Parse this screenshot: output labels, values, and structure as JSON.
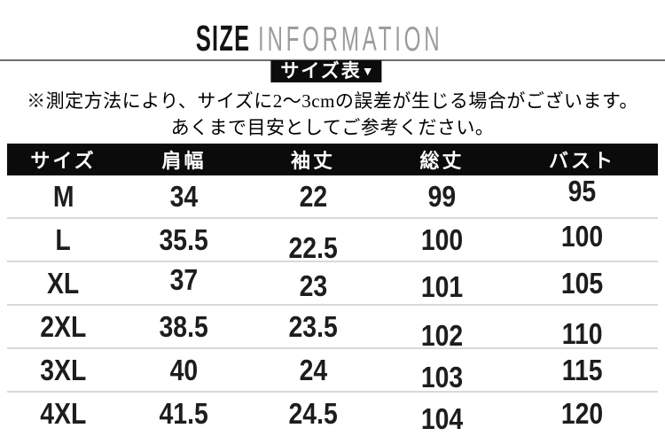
{
  "header": {
    "size_label": "SIZE",
    "info_label": "INFORMATION"
  },
  "badge": {
    "label": "サイズ表",
    "arrow_icon": "▼"
  },
  "note": {
    "line1": "※測定方法により、サイズに2〜3cmの誤差が生じる場合がございます。",
    "line2": "あくまで目安としてご参考ください。"
  },
  "table": {
    "columns": [
      "サイズ",
      "肩幅",
      "袖丈",
      "総丈",
      "バスト"
    ],
    "rows": [
      [
        "M",
        "34",
        "22",
        "99",
        "95"
      ],
      [
        "L",
        "35.5",
        "22.5",
        "100",
        "100"
      ],
      [
        "XL",
        "37",
        "23",
        "101",
        "105"
      ],
      [
        "2XL",
        "38.5",
        "23.5",
        "102",
        "110"
      ],
      [
        "3XL",
        "40",
        "24",
        "103",
        "115"
      ],
      [
        "4XL",
        "41.5",
        "24.5",
        "104",
        "120"
      ]
    ]
  },
  "colors": {
    "header_bar": "#0b0b0b",
    "badge_bg": "#0c0c0c",
    "divider": "#6e6e6e",
    "info_gray": "#9c9c9c",
    "row_separator": "#d9d9d9"
  }
}
